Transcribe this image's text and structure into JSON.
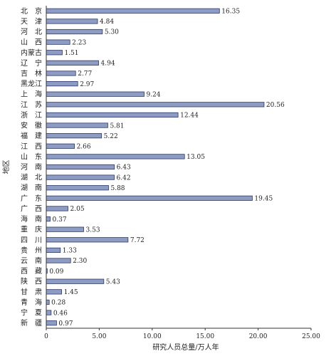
{
  "chart_data": {
    "type": "bar",
    "orientation": "horizontal",
    "xlabel": "研究人员总量/万人年",
    "ylabel": "地区",
    "xlim": [
      0,
      25
    ],
    "xticks": [
      "0",
      "5.00",
      "10.00",
      "15.00",
      "20.00",
      "25.00"
    ],
    "xtick_values": [
      0,
      5,
      10,
      15,
      20,
      25
    ],
    "grid": false,
    "categories": [
      "北　京",
      "天　津",
      "河　北",
      "山　西",
      "内蒙古",
      "辽　宁",
      "吉　林",
      "黑龙江",
      "上　海",
      "江　苏",
      "浙　江",
      "安　徽",
      "福　建",
      "江　西",
      "山　东",
      "河　南",
      "湖　北",
      "湖　南",
      "广　东",
      "广　西",
      "海　南",
      "重　庆",
      "四　川",
      "贵　州",
      "云　南",
      "西　藏",
      "陕　西",
      "甘　肃",
      "青　海",
      "宁　夏",
      "新　疆"
    ],
    "values": [
      16.35,
      4.84,
      5.3,
      2.23,
      1.51,
      4.94,
      2.77,
      2.97,
      9.24,
      20.56,
      12.44,
      5.81,
      5.22,
      2.66,
      13.05,
      6.43,
      6.42,
      5.88,
      19.45,
      2.05,
      0.37,
      3.53,
      7.72,
      1.33,
      2.3,
      0.09,
      5.43,
      1.45,
      0.28,
      0.46,
      0.97
    ],
    "value_labels": [
      "16.35",
      "4.84",
      "5.30",
      "2.23",
      "1.51",
      "4.94",
      "2.77",
      "2.97",
      "9.24",
      "20.56",
      "12.44",
      "5.81",
      "5.22",
      "2.66",
      "13.05",
      "6.43",
      "6.42",
      "5.88",
      "19.45",
      "2.05",
      "0.37",
      "3.53",
      "7.72",
      "1.33",
      "2.30",
      "0.09",
      "5.43",
      "1.45",
      "0.28",
      "0.46",
      "0.97"
    ],
    "bar_color": "#8e9cc4",
    "bar_edge_color": "#2b3a67"
  }
}
